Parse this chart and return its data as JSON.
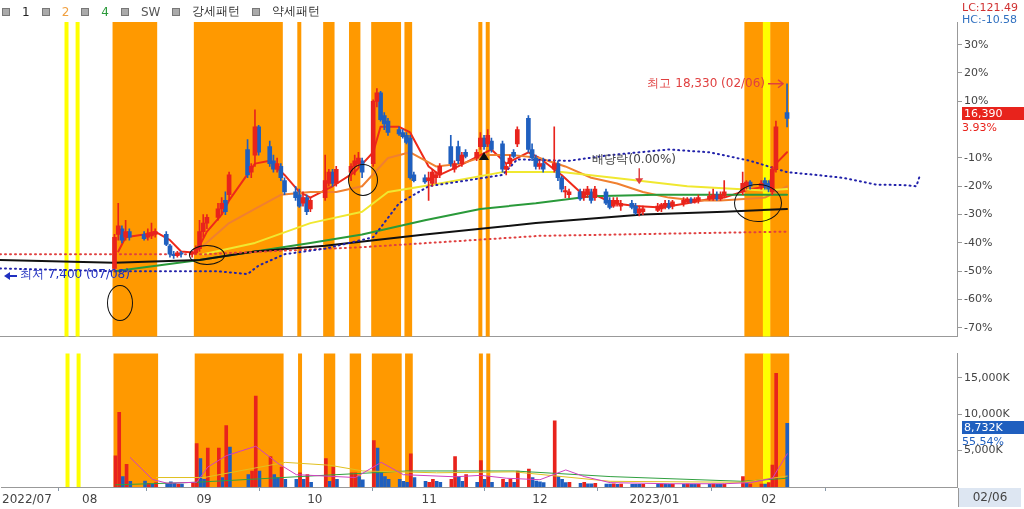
{
  "chart_data": [
    {
      "type": "candlestick",
      "xlim": [
        "2022-07-08",
        "2023-03-24"
      ],
      "ylim": [
        -73,
        38
      ],
      "yticks": [
        {
          "value": -70,
          "label": "-70%"
        },
        {
          "value": -60,
          "label": "-60%"
        },
        {
          "value": -50,
          "label": "-50%"
        },
        {
          "value": -40,
          "label": "-40%"
        },
        {
          "value": -30,
          "label": "-30%"
        },
        {
          "value": -20,
          "label": "-20%"
        },
        {
          "value": -10,
          "label": "-10%"
        },
        {
          "value": 10,
          "label": "10%"
        },
        {
          "value": 20,
          "label": "20%"
        },
        {
          "value": 30,
          "label": "30%"
        }
      ],
      "tick_labels": "y",
      "bands": [
        {
          "axis": "x",
          "from": "2022-07-26",
          "to": "2022-07-26",
          "color": "#ffff00"
        },
        {
          "axis": "x",
          "from": "2022-07-29",
          "to": "2022-07-29",
          "color": "#ffff00"
        },
        {
          "axis": "x",
          "from": "2022-08-08",
          "to": "2022-08-19",
          "color": "#ff9900"
        },
        {
          "axis": "x",
          "from": "2022-08-30",
          "to": "2022-09-22",
          "color": "#ff9900"
        },
        {
          "axis": "x",
          "from": "2022-09-27",
          "to": "2022-09-27",
          "color": "#ff9900"
        },
        {
          "axis": "x",
          "from": "2022-10-04",
          "to": "2022-10-06",
          "color": "#ff9900"
        },
        {
          "axis": "x",
          "from": "2022-10-11",
          "to": "2022-10-13",
          "color": "#ff9900"
        },
        {
          "axis": "x",
          "from": "2022-10-17",
          "to": "2022-10-24",
          "color": "#ff9900"
        },
        {
          "axis": "x",
          "from": "2022-10-26",
          "to": "2022-10-27",
          "color": "#ff9900"
        },
        {
          "axis": "x",
          "from": "2022-11-15",
          "to": "2022-11-15",
          "color": "#ff9900"
        },
        {
          "axis": "x",
          "from": "2022-11-17",
          "to": "2022-11-17",
          "color": "#ff9900"
        },
        {
          "axis": "x",
          "from": "2023-01-26",
          "to": "2023-01-30",
          "color": "#ff9900"
        },
        {
          "axis": "x",
          "from": "2023-01-31",
          "to": "2023-02-01",
          "color": "#ffff00"
        },
        {
          "axis": "x",
          "from": "2023-02-02",
          "to": "2023-02-06",
          "color": "#ff9900"
        }
      ],
      "annotations": [
        "1",
        "2",
        "4",
        "SW",
        "강세패턴",
        "약세패턴",
        "LC:121.49",
        "HC:-10.58",
        "16,390",
        "3.93%",
        {
          "text": "최고 18,330 (02/06)",
          "x": "2023-02-06",
          "y": 16.2
        },
        "최저 7,400 (07/08)",
        {
          "text": "배당락(0.00%)",
          "x": "2022-12-28",
          "y": -20
        }
      ],
      "series": [
        {
          "type": "line",
          "color": "#2222aa",
          "line_style": "dotted",
          "x": [
            "2022-07-08",
            "2022-08-08",
            "2022-09-05",
            "2022-09-13",
            "2022-09-16",
            "2022-09-23",
            "2022-10-04",
            "2022-10-17",
            "2022-10-24",
            "2022-11-01",
            "2022-11-21",
            "2022-11-25",
            "2022-12-09",
            "2022-12-20",
            "2023-01-05",
            "2023-01-16",
            "2023-01-27",
            "2023-02-06",
            "2023-02-14",
            "2023-02-21",
            "2023-03-02",
            "2023-03-10",
            "2023-03-13",
            "2023-03-14"
          ],
          "values": [
            -49,
            -50,
            -50,
            -51,
            -48,
            -44,
            -42,
            -38,
            -26,
            -20,
            -16,
            -10.5,
            -11,
            -9,
            -7,
            -8,
            -11,
            -15,
            -16,
            -17,
            -19.4,
            -19.6,
            -20,
            -16
          ]
        },
        {
          "type": "line",
          "color": "#e04040",
          "line_style": "dotted",
          "x": [
            "2022-07-08",
            "2022-09-01",
            "2022-10-14",
            "2022-12-01",
            "2023-02-06"
          ],
          "values": [
            -44,
            -44,
            -41.5,
            -37.5,
            -36
          ]
        },
        {
          "type": "line",
          "color": "#111111",
          "x": [
            "2022-07-08",
            "2022-08-08",
            "2022-08-31",
            "2022-09-15",
            "2022-10-04",
            "2022-10-31",
            "2022-11-30",
            "2022-12-29",
            "2023-01-20",
            "2023-02-06"
          ],
          "values": [
            -46,
            -47,
            -46,
            -43,
            -41,
            -37,
            -33,
            -30,
            -29,
            -28
          ]
        },
        {
          "type": "line",
          "color": "#2a9a3a",
          "x": [
            "2022-08-08",
            "2022-08-31",
            "2022-09-15",
            "2022-09-30",
            "2022-10-14",
            "2022-10-31",
            "2022-11-15",
            "2022-11-30",
            "2022-12-15",
            "2023-01-02",
            "2023-01-20",
            "2023-02-06"
          ],
          "values": [
            -50,
            -46,
            -43,
            -40,
            -37,
            -32,
            -28,
            -26,
            -23.5,
            -23,
            -23,
            -23
          ]
        },
        {
          "type": "line",
          "color": "#f0e830",
          "x": [
            "2022-09-01",
            "2022-09-15",
            "2022-09-30",
            "2022-10-14",
            "2022-10-21",
            "2022-11-04",
            "2022-11-21",
            "2022-12-07",
            "2022-12-21",
            "2023-01-10",
            "2023-01-31",
            "2023-02-06"
          ],
          "values": [
            -44,
            -40,
            -33,
            -29,
            -22,
            -19,
            -15,
            -15,
            -17,
            -20,
            -21.5,
            -21
          ]
        },
        {
          "type": "line",
          "color": "#f08030",
          "x": [
            "2022-09-01",
            "2022-09-08",
            "2022-09-15",
            "2022-09-22",
            "2022-09-30",
            "2022-10-07",
            "2022-10-14",
            "2022-10-21",
            "2022-10-27",
            "2022-11-03",
            "2022-11-10",
            "2022-11-17",
            "2022-11-24",
            "2022-12-01",
            "2022-12-08",
            "2022-12-15",
            "2022-12-22",
            "2022-12-29",
            "2023-01-05",
            "2023-01-12",
            "2023-01-19",
            "2023-01-31",
            "2023-02-06"
          ],
          "values": [
            -41,
            -33,
            -28,
            -23,
            -22,
            -22,
            -20,
            -10,
            -8,
            -13,
            -12,
            -9,
            -9,
            -10,
            -13,
            -17,
            -19,
            -22,
            -24,
            -25,
            -25,
            -24,
            -20
          ]
        },
        {
          "type": "line",
          "color": "#ee2a1a",
          "x": [
            "2022-08-09",
            "2022-08-11",
            "2022-08-16",
            "2022-08-19",
            "2022-08-23",
            "2022-08-26",
            "2022-08-30",
            "2022-09-02",
            "2022-09-06",
            "2022-09-08",
            "2022-09-15",
            "2022-09-19",
            "2022-09-23",
            "2022-09-27",
            "2022-09-30",
            "2022-10-06",
            "2022-10-12",
            "2022-10-17",
            "2022-10-19",
            "2022-10-24",
            "2022-10-27",
            "2022-11-01",
            "2022-11-04",
            "2022-11-09",
            "2022-11-15",
            "2022-11-18",
            "2022-11-22",
            "2022-11-28",
            "2022-12-01",
            "2022-12-07",
            "2022-12-12",
            "2022-12-16",
            "2022-12-21",
            "2022-12-27",
            "2023-01-03",
            "2023-01-10",
            "2023-01-16",
            "2023-01-20",
            "2023-01-27",
            "2023-02-01",
            "2023-02-03",
            "2023-02-06"
          ],
          "values": [
            -43,
            -38,
            -37,
            -36,
            -39,
            -43,
            -43.5,
            -36,
            -30,
            -25,
            -12,
            -11,
            -16,
            -22,
            -24,
            -20,
            -15,
            -8,
            1,
            1,
            -1,
            -13,
            -16,
            -13,
            -9,
            -7,
            -12,
            -8,
            -10,
            -16,
            -22,
            -23,
            -26,
            -27,
            -27.5,
            -26,
            -24.5,
            -24,
            -21,
            -20,
            -12,
            -8
          ]
        },
        {
          "color": "#e8231c",
          "x": [
            "2022-08-08",
            "2022-08-09",
            "2022-08-11",
            "2022-08-17",
            "2022-08-18",
            "2022-08-19",
            "2022-08-25",
            "2022-08-29",
            "2022-08-30",
            "2022-08-31",
            "2022-09-01",
            "2022-09-02",
            "2022-09-05",
            "2022-09-06",
            "2022-09-08",
            "2022-09-14",
            "2022-09-15",
            "2022-09-21",
            "2022-09-28",
            "2022-09-30",
            "2022-10-04",
            "2022-10-05",
            "2022-10-07",
            "2022-10-11",
            "2022-10-12",
            "2022-10-13",
            "2022-10-17",
            "2022-10-18",
            "2022-11-01",
            "2022-11-02",
            "2022-11-03",
            "2022-11-04",
            "2022-11-08",
            "2022-11-10",
            "2022-11-14",
            "2022-11-15",
            "2022-11-17",
            "2022-11-22",
            "2022-11-23",
            "2022-11-25",
            "2022-12-01",
            "2022-12-05",
            "2022-12-08",
            "2022-12-09",
            "2022-12-13",
            "2022-12-14",
            "2022-12-16",
            "2022-12-21",
            "2022-12-22",
            "2022-12-23",
            "2022-12-28",
            "2022-12-29",
            "2023-01-02",
            "2023-01-03",
            "2023-01-04",
            "2023-01-06",
            "2023-01-09",
            "2023-01-10",
            "2023-01-12",
            "2023-01-13",
            "2023-01-16",
            "2023-01-17",
            "2023-01-19",
            "2023-01-20",
            "2023-01-25",
            "2023-01-26",
            "2023-01-30",
            "2023-02-02",
            "2023-02-03"
          ],
          "ohlc": [
            [
              -49,
              -37,
              -50,
              -38
            ],
            [
              -37,
              -26,
              -39,
              -34
            ],
            [
              -38,
              -32,
              -39,
              -36
            ],
            [
              -38,
              -35,
              -39,
              -37
            ],
            [
              -37.5,
              -33,
              -38.5,
              -36.5
            ],
            [
              -37,
              -35,
              -38,
              -36
            ],
            [
              -44.5,
              -43,
              -45,
              -43.5
            ],
            [
              -44,
              -43,
              -45,
              -43.5
            ],
            [
              -43.5,
              -41,
              -44,
              -42
            ],
            [
              -42,
              -32,
              -43,
              -36
            ],
            [
              -36,
              -30,
              -38,
              -33
            ],
            [
              -33,
              -30,
              -35,
              -31
            ],
            [
              -31,
              -26,
              -32,
              -28
            ],
            [
              -28,
              -24,
              -30,
              -26
            ],
            [
              -23,
              -15,
              -25,
              -16
            ],
            [
              -15,
              -12,
              -17,
              -13
            ],
            [
              -9,
              7,
              -13,
              1
            ],
            [
              -14,
              -10,
              -15,
              -12
            ],
            [
              -26,
              -22,
              -27,
              -24
            ],
            [
              -28,
              -24,
              -29,
              -25
            ],
            [
              -24,
              -9,
              -25,
              -18
            ],
            [
              -19,
              -14,
              -20,
              -15
            ],
            [
              -19,
              -13,
              -20,
              -14
            ],
            [
              -15,
              -12,
              -18,
              -13
            ],
            [
              -13,
              -9,
              -16,
              -11
            ],
            [
              -12,
              -8,
              -13,
              -10
            ],
            [
              -12,
              10.5,
              -13,
              10
            ],
            [
              10,
              14.5,
              8,
              13
            ],
            [
              -18,
              -15,
              -25,
              -17
            ],
            [
              -19,
              -14,
              -20,
              -15
            ],
            [
              -17,
              -15,
              -19,
              -16
            ],
            [
              -16,
              -12,
              -17,
              -13
            ],
            [
              -14,
              -11,
              -15,
              -12
            ],
            [
              -12,
              -8,
              -13,
              -9
            ],
            [
              -10,
              -7,
              -11,
              -8
            ],
            [
              -6,
              -1,
              -7,
              -3
            ],
            [
              -5,
              0,
              -6,
              -2
            ],
            [
              -14,
              -12,
              -16,
              -13
            ],
            [
              -12,
              -9,
              -13,
              -10
            ],
            [
              -5,
              1,
              -6,
              0
            ],
            [
              -13,
              -11,
              -14,
              -12
            ],
            [
              -14,
              1,
              -15,
              -12
            ],
            [
              -22,
              -20,
              -24,
              -21.5
            ],
            [
              -23,
              -21,
              -24,
              -22
            ],
            [
              -24,
              -21,
              -25,
              -22
            ],
            [
              -23,
              -20,
              -24,
              -21
            ],
            [
              -24,
              -20,
              -25,
              -21
            ],
            [
              -27,
              -24,
              -27.5,
              -25
            ],
            [
              -26,
              -24,
              -27,
              -25
            ],
            [
              -27,
              -25,
              -28.5,
              -26
            ],
            [
              -29.5,
              -27,
              -30.5,
              -28
            ],
            [
              -29,
              -27,
              -30,
              -28
            ],
            [
              -28.5,
              -26,
              -29,
              -27
            ],
            [
              -28,
              -26,
              -29,
              -26.5
            ],
            [
              -27,
              -25,
              -28,
              -26
            ],
            [
              -27,
              -25,
              -28,
              -25.5
            ],
            [
              -26,
              -24,
              -27,
              -25
            ],
            [
              -25.5,
              -24,
              -26,
              -24.5
            ],
            [
              -25.5,
              -24,
              -26,
              -24.5
            ],
            [
              -25,
              -23,
              -26,
              -24
            ],
            [
              -24.5,
              -22,
              -25,
              -23.5
            ],
            [
              -24,
              -21,
              -25,
              -23
            ],
            [
              -24.5,
              -22,
              -25,
              -23
            ],
            [
              -23.5,
              -18,
              -24,
              -22
            ],
            [
              -22,
              -15,
              -23,
              -19
            ],
            [
              -20,
              -18,
              -21,
              -18.5
            ],
            [
              -20,
              -18,
              -21,
              -19
            ],
            [
              -22,
              -13,
              -23,
              -14
            ],
            [
              -14,
              3,
              -15,
              1
            ]
          ]
        },
        {
          "color": "#1f5fbf",
          "x": [
            "2022-08-10",
            "2022-08-12",
            "2022-08-16",
            "2022-08-22",
            "2022-08-23",
            "2022-08-24",
            "2022-08-26",
            "2022-09-07",
            "2022-09-13",
            "2022-09-16",
            "2022-09-19",
            "2022-09-20",
            "2022-09-22",
            "2022-09-23",
            "2022-09-26",
            "2022-09-27",
            "2022-09-29",
            "2022-10-06",
            "2022-10-14",
            "2022-10-19",
            "2022-10-20",
            "2022-10-21",
            "2022-10-24",
            "2022-10-25",
            "2022-10-26",
            "2022-10-27",
            "2022-10-28",
            "2022-10-31",
            "2022-11-07",
            "2022-11-09",
            "2022-11-11",
            "2022-11-16",
            "2022-11-18",
            "2022-11-21",
            "2022-11-24",
            "2022-11-28",
            "2022-11-29",
            "2022-11-30",
            "2022-12-02",
            "2022-12-06",
            "2022-12-07",
            "2022-12-12",
            "2022-12-15",
            "2022-12-19",
            "2022-12-20",
            "2022-12-26",
            "2022-12-27",
            "2023-01-05",
            "2023-01-11",
            "2023-01-18",
            "2023-01-27",
            "2023-01-31",
            "2023-02-01",
            "2023-02-06"
          ],
          "ohlc": [
            [
              -35,
              -34,
              -40,
              -39
            ],
            [
              -36,
              -35,
              -39,
              -38
            ],
            [
              -37,
              -36,
              -39,
              -38.5
            ],
            [
              -37,
              -36,
              -41,
              -40.5
            ],
            [
              -41,
              -40.5,
              -45,
              -44
            ],
            [
              -44,
              -43,
              -45.5,
              -44.5
            ],
            [
              -43.5,
              -43,
              -45,
              -44
            ],
            [
              -25,
              -22,
              -30,
              -29
            ],
            [
              -7,
              -3.5,
              -17,
              -16
            ],
            [
              1,
              1.5,
              -9,
              -8
            ],
            [
              -6,
              -4,
              -13,
              -12
            ],
            [
              -11,
              -9,
              -15,
              -14
            ],
            [
              -13,
              -12,
              -18,
              -17
            ],
            [
              -18,
              -17,
              -23,
              -22
            ],
            [
              -22,
              -20,
              -25,
              -24
            ],
            [
              -23,
              -21,
              -27.5,
              -27
            ],
            [
              -24,
              -23,
              -30,
              -29
            ],
            [
              -15,
              -14,
              -20,
              -19
            ],
            [
              -11,
              -10,
              -17,
              -15
            ],
            [
              13,
              13.5,
              3,
              3.5
            ],
            [
              5,
              6,
              0,
              2
            ],
            [
              3,
              4,
              -2,
              -1
            ],
            [
              0,
              1,
              -2,
              -1.5
            ],
            [
              -1,
              0,
              -3,
              -2.5
            ],
            [
              -2,
              -1,
              -5,
              -4.5
            ],
            [
              -3,
              -2,
              -17.5,
              -17
            ],
            [
              -16,
              -15,
              -18.5,
              -18
            ],
            [
              -17,
              -16,
              -19,
              -18.5
            ],
            [
              -6,
              -2,
              -13,
              -12
            ],
            [
              -6,
              -4,
              -12,
              -11
            ],
            [
              -8,
              -7,
              -10,
              -9.5
            ],
            [
              -3,
              -2,
              -7,
              -6
            ],
            [
              -4,
              -3,
              -8,
              -7
            ],
            [
              -5,
              -4,
              -15,
              -14
            ],
            [
              -8,
              -7,
              -10,
              -9.5
            ],
            [
              4,
              5,
              -8,
              -7
            ],
            [
              -7,
              -5,
              -11,
              -10
            ],
            [
              -10,
              -9,
              -14,
              -13
            ],
            [
              -12,
              -10,
              -15,
              -14
            ],
            [
              -12,
              -11,
              -18,
              -17
            ],
            [
              -17,
              -16.5,
              -22,
              -21
            ],
            [
              -22,
              -21,
              -25,
              -24.5
            ],
            [
              -22,
              -21,
              -26,
              -25
            ],
            [
              -22,
              -21,
              -26.5,
              -26
            ],
            [
              -25,
              -24,
              -28,
              -27.5
            ],
            [
              -26,
              -25,
              -28,
              -27.5
            ],
            [
              -27,
              -26,
              -30,
              -29.5
            ],
            [
              -26,
              -25,
              -28,
              -27.5
            ],
            [
              -24.5,
              -24,
              -26,
              -25.5
            ],
            [
              -23,
              -22,
              -25,
              -24.5
            ],
            [
              -18.5,
              -18,
              -21,
              -20
            ],
            [
              -18,
              -17,
              -21,
              -20
            ],
            [
              -19,
              -18,
              -22,
              -21
            ],
            [
              6,
              16.2,
              1,
              3.93
            ]
          ]
        }
      ]
    },
    {
      "type": "bar",
      "xlim": [
        "2022-07-08",
        "2023-03-24"
      ],
      "xticks": [
        {
          "value": "2022-07-15",
          "label": "2022/07"
        },
        {
          "value": "2022-08-01",
          "label": "08"
        },
        {
          "value": "2022-09-01",
          "label": "09"
        },
        {
          "value": "2022-10-01",
          "label": "10"
        },
        {
          "value": "2022-11-01",
          "label": "11"
        },
        {
          "value": "2022-12-01",
          "label": "12"
        },
        {
          "value": "2023-01-01",
          "label": "2023/01"
        },
        {
          "value": "2023-02-01",
          "label": "02"
        }
      ],
      "ylim": [
        0,
        18300
      ],
      "yticks": [
        {
          "value": 5000,
          "label": "5,000K"
        },
        {
          "value": 10000,
          "label": "10,000K"
        },
        {
          "value": 15000,
          "label": "15,000K"
        }
      ],
      "bands": [
        {
          "axis": "x",
          "from": "2022-07-26",
          "to": "2022-07-26",
          "color": "#ffff00"
        },
        {
          "axis": "x",
          "from": "2022-07-29",
          "to": "2022-07-29",
          "color": "#ffff00"
        },
        {
          "axis": "x",
          "from": "2022-08-08",
          "to": "2022-08-19",
          "color": "#ff9900"
        },
        {
          "axis": "x",
          "from": "2022-08-30",
          "to": "2022-09-22",
          "color": "#ff9900"
        },
        {
          "axis": "x",
          "from": "2022-09-27",
          "to": "2022-09-27",
          "color": "#ff9900"
        },
        {
          "axis": "x",
          "from": "2022-10-04",
          "to": "2022-10-06",
          "color": "#ff9900"
        },
        {
          "axis": "x",
          "from": "2022-10-11",
          "to": "2022-10-13",
          "color": "#ff9900"
        },
        {
          "axis": "x",
          "from": "2022-10-17",
          "to": "2022-10-24",
          "color": "#ff9900"
        },
        {
          "axis": "x",
          "from": "2022-10-26",
          "to": "2022-10-27",
          "color": "#ff9900"
        },
        {
          "axis": "x",
          "from": "2022-11-15",
          "to": "2022-11-15",
          "color": "#ff9900"
        },
        {
          "axis": "x",
          "from": "2022-11-17",
          "to": "2022-11-17",
          "color": "#ff9900"
        },
        {
          "axis": "x",
          "from": "2023-01-26",
          "to": "2023-01-30",
          "color": "#ff9900"
        },
        {
          "axis": "x",
          "from": "2023-01-31",
          "to": "2023-02-01",
          "color": "#ffff00"
        },
        {
          "axis": "x",
          "from": "2023-02-02",
          "to": "2023-02-06",
          "color": "#ff9900"
        }
      ],
      "annotations": [
        "8,732K",
        "55.54%",
        "02/06"
      ],
      "series": [
        {
          "color": "#e8231c",
          "x": [
            "2022-08-08",
            "2022-08-09",
            "2022-08-11",
            "2022-08-17",
            "2022-08-19",
            "2022-08-25",
            "2022-08-29",
            "2022-08-30",
            "2022-09-02",
            "2022-09-05",
            "2022-09-07",
            "2022-09-14",
            "2022-09-15",
            "2022-09-19",
            "2022-09-22",
            "2022-09-27",
            "2022-09-29",
            "2022-10-04",
            "2022-10-06",
            "2022-10-11",
            "2022-10-12",
            "2022-10-17",
            "2022-10-27",
            "2022-11-01",
            "2022-11-02",
            "2022-11-07",
            "2022-11-08",
            "2022-11-11",
            "2022-11-15",
            "2022-11-17",
            "2022-11-21",
            "2022-11-23",
            "2022-11-25",
            "2022-11-28",
            "2022-12-05",
            "2022-12-09",
            "2022-12-13",
            "2022-12-16",
            "2022-12-21",
            "2022-12-23",
            "2022-12-29",
            "2023-01-03",
            "2023-01-06",
            "2023-01-10",
            "2023-01-13",
            "2023-01-17",
            "2023-01-20",
            "2023-01-25",
            "2023-01-27",
            "2023-01-30",
            "2023-02-01",
            "2023-02-02",
            "2023-02-03"
          ],
          "values": [
            4290,
            10260,
            3100,
            500,
            600,
            400,
            500,
            5970,
            5330,
            5330,
            8440,
            2200,
            12470,
            4160,
            2730,
            1950,
            1690,
            3900,
            2730,
            1950,
            1950,
            6370,
            4550,
            650,
            1040,
            1040,
            4160,
            1690,
            3640,
            1430,
            1040,
            1040,
            2200,
            2470,
            9090,
            650,
            650,
            500,
            450,
            400,
            350,
            400,
            350,
            400,
            350,
            400,
            400,
            1430,
            400,
            400,
            600,
            3000,
            15590
          ]
        },
        {
          "color": "#1f5fbf",
          "x": [
            "2022-08-10",
            "2022-08-12",
            "2022-08-16",
            "2022-08-18",
            "2022-08-22",
            "2022-08-23",
            "2022-08-24",
            "2022-08-26",
            "2022-08-31",
            "2022-09-01",
            "2022-09-06",
            "2022-09-08",
            "2022-09-13",
            "2022-09-16",
            "2022-09-20",
            "2022-09-21",
            "2022-09-23",
            "2022-09-26",
            "2022-09-28",
            "2022-09-30",
            "2022-10-05",
            "2022-10-07",
            "2022-10-13",
            "2022-10-14",
            "2022-10-18",
            "2022-10-19",
            "2022-10-20",
            "2022-10-21",
            "2022-10-24",
            "2022-10-25",
            "2022-10-26",
            "2022-10-28",
            "2022-10-31",
            "2022-11-03",
            "2022-11-04",
            "2022-11-09",
            "2022-11-10",
            "2022-11-14",
            "2022-11-16",
            "2022-11-18",
            "2022-11-22",
            "2022-11-24",
            "2022-11-29",
            "2022-11-30",
            "2022-12-01",
            "2022-12-02",
            "2022-12-06",
            "2022-12-07",
            "2022-12-08",
            "2022-12-12",
            "2022-12-14",
            "2022-12-15",
            "2022-12-19",
            "2022-12-20",
            "2022-12-22",
            "2022-12-26",
            "2022-12-27",
            "2022-12-28",
            "2023-01-02",
            "2023-01-04",
            "2023-01-05",
            "2023-01-09",
            "2023-01-11",
            "2023-01-12",
            "2023-01-16",
            "2023-01-18",
            "2023-01-19",
            "2023-01-26",
            "2023-01-31",
            "2023-02-06"
          ],
          "values": [
            1430,
            780,
            800,
            400,
            500,
            700,
            500,
            400,
            3900,
            1040,
            1300,
            5460,
            1690,
            2200,
            1690,
            1300,
            1040,
            1040,
            1040,
            650,
            780,
            1040,
            1430,
            1000,
            5330,
            1950,
            1430,
            1040,
            1040,
            780,
            650,
            1300,
            780,
            780,
            650,
            1430,
            780,
            650,
            1040,
            650,
            650,
            650,
            1300,
            800,
            700,
            600,
            1430,
            1040,
            600,
            500,
            450,
            450,
            400,
            400,
            350,
            350,
            350,
            350,
            350,
            350,
            350,
            350,
            350,
            350,
            350,
            350,
            350,
            500,
            400,
            8732
          ]
        },
        {
          "type": "line",
          "color": "#d040c0",
          "x": [
            "2022-08-12",
            "2022-08-18",
            "2022-08-22",
            "2022-08-30",
            "2022-09-02",
            "2022-09-07",
            "2022-09-15",
            "2022-09-21",
            "2022-09-26",
            "2022-10-04",
            "2022-10-12",
            "2022-10-19",
            "2022-10-25",
            "2022-11-08",
            "2022-11-15",
            "2022-11-22",
            "2022-12-01",
            "2022-12-08",
            "2022-12-13",
            "2022-12-20",
            "2023-01-05",
            "2023-01-20",
            "2023-01-27",
            "2023-02-02",
            "2023-02-06"
          ],
          "values": [
            4030,
            1040,
            520,
            650,
            2730,
            4290,
            5590,
            3250,
            1690,
            1500,
            1300,
            3380,
            1690,
            1400,
            1600,
            1200,
            1000,
            2340,
            1430,
            600,
            450,
            450,
            600,
            1200,
            4550
          ]
        },
        {
          "type": "line",
          "color": "#e0c020",
          "x": [
            "2022-08-19",
            "2022-09-01",
            "2022-09-23",
            "2022-10-05",
            "2022-10-14",
            "2022-11-03",
            "2022-11-24",
            "2022-12-20",
            "2023-01-25",
            "2023-02-06"
          ],
          "values": [
            1300,
            1300,
            3380,
            2990,
            2200,
            1950,
            2080,
            780,
            650,
            1500
          ]
        },
        {
          "type": "line",
          "color": "#30a040",
          "x": [
            "2022-08-08",
            "2022-08-30",
            "2022-09-27",
            "2022-10-26",
            "2022-11-24",
            "2022-12-20",
            "2023-01-25",
            "2023-02-06"
          ],
          "values": [
            300,
            650,
            1430,
            2200,
            2200,
            1430,
            780,
            1200
          ]
        }
      ]
    }
  ]
}
